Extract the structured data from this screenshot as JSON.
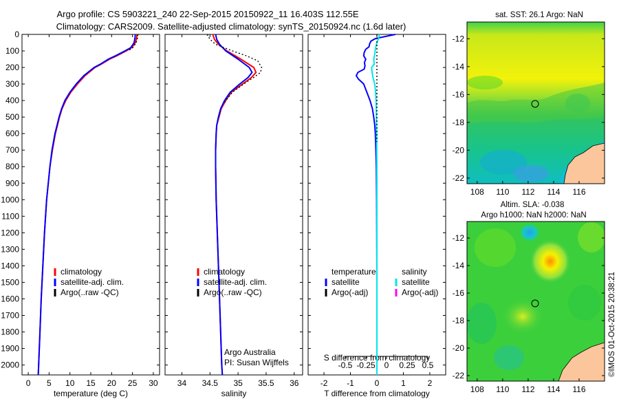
{
  "figure": {
    "title_line1": "Argo profile: CS 5903221_240 22-Sep-2015 20150922_11 16.403S 112.55E",
    "title_line2": "Climatology: CARS2009. Satellite-adjusted climatology: synTS_20150924.nc (1.6d later)",
    "credit": "©IMOS 01-Oct-2015 20:38:21"
  },
  "colors": {
    "climatology": "#ff0000",
    "satellite": "#0000ff",
    "argo": "#000000",
    "salinity_satellite": "#00e5ee",
    "salinity_argo": "#ff00ff"
  },
  "depth_axis": {
    "ylim": [
      0,
      2060
    ],
    "ticks": [
      "0",
      "100",
      "200",
      "300",
      "400",
      "500",
      "600",
      "700",
      "800",
      "900",
      "1000",
      "1100",
      "1200",
      "1300",
      "1400",
      "1500",
      "1600",
      "1700",
      "1800",
      "1900",
      "2000"
    ]
  },
  "chart_data": [
    {
      "type": "line",
      "xlabel": "temperature (deg C)",
      "xlim": [
        -1.5,
        31.5
      ],
      "xticks": [
        "0",
        "5",
        "10",
        "15",
        "20",
        "25",
        "30"
      ],
      "legend": [
        "climatology",
        "satellite-adj. clim.",
        "Argo(..raw -QC)"
      ],
      "legend_position": "lower-center",
      "series": [
        {
          "name": "climatology",
          "style": "solid",
          "depth": [
            0,
            20,
            50,
            80,
            100,
            130,
            150,
            180,
            200,
            250,
            300,
            350,
            400,
            450,
            500,
            550,
            600,
            700,
            800,
            900,
            1000,
            1200,
            1400,
            1600,
            1800,
            2000,
            2060
          ],
          "values": [
            26.1,
            26.0,
            25.7,
            24.8,
            23.5,
            21.2,
            19.5,
            17.5,
            16.0,
            13.6,
            11.8,
            10.2,
            9.0,
            8.1,
            7.5,
            7.0,
            6.5,
            5.8,
            5.2,
            4.8,
            4.4,
            3.9,
            3.5,
            3.1,
            2.8,
            2.5,
            2.4
          ]
        },
        {
          "name": "satellite-adj. clim.",
          "style": "solid",
          "depth": [
            0,
            20,
            50,
            80,
            100,
            130,
            150,
            180,
            200,
            250,
            300,
            350,
            400,
            450,
            500,
            550,
            600,
            700,
            800,
            900,
            1000,
            1200,
            1400,
            1600,
            1800,
            2000,
            2060
          ],
          "values": [
            25.7,
            25.6,
            25.4,
            24.6,
            23.2,
            20.9,
            19.2,
            17.3,
            15.8,
            13.3,
            11.5,
            10.0,
            8.8,
            8.0,
            7.4,
            6.9,
            6.4,
            5.7,
            5.2,
            4.8,
            4.4,
            3.9,
            3.5,
            3.1,
            2.8,
            2.5,
            2.4
          ]
        },
        {
          "name": "Argo(..raw -QC)",
          "style": "dotted",
          "depth": [
            0,
            20,
            50,
            80,
            100
          ],
          "values": [
            26.3,
            26.2,
            25.9,
            25.1,
            24.0
          ]
        }
      ]
    },
    {
      "type": "line",
      "xlabel": "salinity",
      "xlim": [
        33.7,
        36.15
      ],
      "xticks": [
        "34",
        "34.5",
        "35",
        "35.5",
        "36"
      ],
      "legend": [
        "climatology",
        "satellite-adj. clim.",
        "Argo(..raw -QC)"
      ],
      "legend_position": "lower-center",
      "annotation": [
        "Argo Australia",
        "PI: Susan Wijffels"
      ],
      "series": [
        {
          "name": "climatology",
          "style": "solid",
          "depth": [
            0,
            30,
            60,
            100,
            150,
            200,
            230,
            260,
            300,
            350,
            400,
            450,
            500,
            550,
            600,
            700,
            800,
            1000,
            1500,
            2000,
            2060
          ],
          "values": [
            34.55,
            34.58,
            34.65,
            34.8,
            35.05,
            35.28,
            35.32,
            35.24,
            35.08,
            34.88,
            34.78,
            34.7,
            34.66,
            34.62,
            34.61,
            34.6,
            34.6,
            34.61,
            34.66,
            34.71,
            34.72
          ]
        },
        {
          "name": "satellite-adj. clim.",
          "style": "solid",
          "depth": [
            0,
            30,
            60,
            100,
            150,
            200,
            230,
            260,
            300,
            350,
            400,
            450,
            500,
            550,
            600,
            700,
            800,
            1000,
            1500,
            2000,
            2060
          ],
          "values": [
            34.6,
            34.62,
            34.67,
            34.78,
            35.0,
            35.2,
            35.25,
            35.18,
            35.03,
            34.86,
            34.76,
            34.69,
            34.65,
            34.62,
            34.61,
            34.6,
            34.6,
            34.61,
            34.66,
            34.71,
            34.72
          ]
        },
        {
          "name": "Argo(..raw -QC)",
          "style": "dotted",
          "depth": [
            0,
            30,
            60,
            100,
            130,
            160,
            200,
            230,
            260,
            300,
            350,
            400,
            420
          ],
          "values": [
            34.45,
            34.5,
            34.6,
            34.9,
            35.15,
            35.35,
            35.42,
            35.4,
            35.28,
            35.1,
            34.9,
            34.78,
            34.74
          ]
        }
      ]
    },
    {
      "type": "line",
      "xlabel": "T difference from climatology",
      "x2label": "S difference from climatology",
      "xlim": [
        -2.6,
        2.6
      ],
      "xticks": [
        "-2",
        "-1",
        "0",
        "1",
        "2"
      ],
      "x2ticks": [
        "-0.5",
        "-0.25",
        "0",
        "0.25",
        "0.5"
      ],
      "legend_temperature": [
        "temperature",
        "satellite",
        "Argo(-adj)"
      ],
      "legend_salinity": [
        "salinity",
        "satellite",
        "Argo(-adj)"
      ],
      "legend_position": "lower-center",
      "series": [
        {
          "name": "temperature satellite",
          "style": "solid",
          "depth": [
            0,
            10,
            25,
            40,
            55,
            75,
            90,
            110,
            130,
            150,
            170,
            190,
            210,
            230,
            250,
            270,
            300,
            350,
            400,
            450,
            500,
            550,
            600,
            700,
            800,
            1000,
            1500,
            2000,
            2060
          ],
          "values": [
            0.7,
            0.4,
            -0.05,
            -0.22,
            -0.27,
            -0.3,
            -0.42,
            -0.48,
            -0.5,
            -0.42,
            -0.47,
            -0.45,
            -0.48,
            -0.72,
            -0.78,
            -0.7,
            -0.5,
            -0.38,
            -0.26,
            -0.17,
            -0.12,
            -0.08,
            -0.06,
            -0.04,
            -0.02,
            -0.01,
            0.0,
            0.0,
            0.0
          ]
        },
        {
          "name": "salinity satellite",
          "style": "solid",
          "depth": [
            0,
            30,
            60,
            90,
            120,
            150,
            180,
            200,
            230,
            260,
            300,
            350,
            400,
            500,
            600,
            800,
            1000,
            1500,
            2000,
            2060
          ],
          "values": [
            0.1,
            0.05,
            -0.02,
            -0.06,
            -0.08,
            -0.12,
            -0.1,
            -0.2,
            -0.18,
            -0.15,
            -0.08,
            -0.05,
            -0.03,
            -0.02,
            -0.01,
            0.0,
            0.0,
            0.0,
            0.0,
            0.0
          ]
        },
        {
          "name": "zero reference",
          "style": "dotted",
          "depth": [
            0,
            650
          ],
          "values": [
            0.0,
            0.0
          ]
        }
      ]
    }
  ],
  "maps": [
    {
      "title_lines": [
        "sat. SST: 26.1  Argo: NaN"
      ],
      "xticks": [
        "108",
        "110",
        "112",
        "114",
        "116"
      ],
      "yticks": [
        "-12",
        "-14",
        "-16",
        "-18",
        "-20",
        "-22"
      ],
      "xlim": [
        107.2,
        118.0
      ],
      "ylim": [
        -22.4,
        -10.8
      ],
      "marker_lon": 112.55,
      "marker_lat": -16.403
    },
    {
      "title_lines": [
        "Altim. SLA: -0.038",
        "Argo h1000: NaN  h2000: NaN"
      ],
      "xticks": [
        "108",
        "110",
        "112",
        "114",
        "116"
      ],
      "yticks": [
        "-12",
        "-14",
        "-16",
        "-18",
        "-20",
        "-22"
      ],
      "xlim": [
        107.2,
        118.0
      ],
      "ylim": [
        -22.4,
        -10.8
      ],
      "marker_lon": 112.55,
      "marker_lat": -16.403
    }
  ]
}
